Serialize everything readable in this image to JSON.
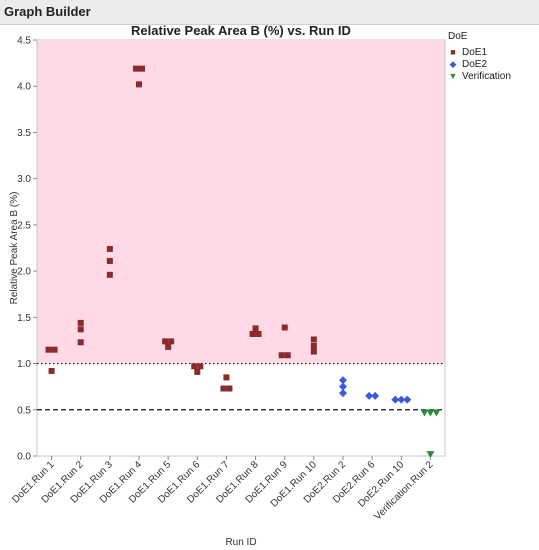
{
  "window": {
    "title": "Graph Builder"
  },
  "chart_data": {
    "type": "scatter",
    "title": "Relative Peak Area B (%)  vs. Run ID",
    "xlabel": "Run ID",
    "ylabel": "Relative Peak Area B (%)",
    "ylim": [
      0,
      4.5
    ],
    "yticks": [
      "0.0",
      "0.5",
      "1.0",
      "1.5",
      "2.0",
      "2.5",
      "3.0",
      "3.5",
      "4.0",
      "4.5"
    ],
    "categories": [
      "DoE1.Run 1",
      "DoE1.Run 2",
      "DoE1.Run 3",
      "DoE1.Run 4",
      "DoE1.Run 5",
      "DoE1.Run 6",
      "DoE1.Run 7",
      "DoE1.Run 8",
      "DoE1.Run 9",
      "DoE1.Run 10",
      "DoE2.Run 2",
      "DoE2.Run 6",
      "DoE2.Run 10",
      "Verification.Run 2"
    ],
    "reference_lines": [
      {
        "y": 1.0,
        "style": "dotted"
      },
      {
        "y": 0.5,
        "style": "dashed"
      }
    ],
    "shaded_region": {
      "from": 1.0,
      "to": 4.5,
      "color": "#ffd9e6"
    },
    "legend": {
      "title": "DoE",
      "position": "right"
    },
    "series": [
      {
        "name": "DoE1",
        "marker": "square",
        "color": "#8b2a2a",
        "points": [
          {
            "x": "DoE1.Run 1",
            "y": 1.15
          },
          {
            "x": "DoE1.Run 1",
            "y": 1.15
          },
          {
            "x": "DoE1.Run 1",
            "y": 0.92
          },
          {
            "x": "DoE1.Run 2",
            "y": 1.44
          },
          {
            "x": "DoE1.Run 2",
            "y": 1.37
          },
          {
            "x": "DoE1.Run 2",
            "y": 1.23
          },
          {
            "x": "DoE1.Run 3",
            "y": 2.24
          },
          {
            "x": "DoE1.Run 3",
            "y": 2.11
          },
          {
            "x": "DoE1.Run 3",
            "y": 1.96
          },
          {
            "x": "DoE1.Run 4",
            "y": 4.19
          },
          {
            "x": "DoE1.Run 4",
            "y": 4.19
          },
          {
            "x": "DoE1.Run 4",
            "y": 4.02
          },
          {
            "x": "DoE1.Run 5",
            "y": 1.24
          },
          {
            "x": "DoE1.Run 5",
            "y": 1.24
          },
          {
            "x": "DoE1.Run 5",
            "y": 1.18
          },
          {
            "x": "DoE1.Run 6",
            "y": 0.97
          },
          {
            "x": "DoE1.Run 6",
            "y": 0.97
          },
          {
            "x": "DoE1.Run 6",
            "y": 0.91
          },
          {
            "x": "DoE1.Run 7",
            "y": 0.85
          },
          {
            "x": "DoE1.Run 7",
            "y": 0.73
          },
          {
            "x": "DoE1.Run 7",
            "y": 0.73
          },
          {
            "x": "DoE1.Run 8",
            "y": 1.38
          },
          {
            "x": "DoE1.Run 8",
            "y": 1.32
          },
          {
            "x": "DoE1.Run 8",
            "y": 1.32
          },
          {
            "x": "DoE1.Run 9",
            "y": 1.39
          },
          {
            "x": "DoE1.Run 9",
            "y": 1.09
          },
          {
            "x": "DoE1.Run 9",
            "y": 1.09
          },
          {
            "x": "DoE1.Run 10",
            "y": 1.26
          },
          {
            "x": "DoE1.Run 10",
            "y": 1.19
          },
          {
            "x": "DoE1.Run 10",
            "y": 1.13
          }
        ]
      },
      {
        "name": "DoE2",
        "marker": "diamond",
        "color": "#3b5bdb",
        "points": [
          {
            "x": "DoE2.Run 2",
            "y": 0.82
          },
          {
            "x": "DoE2.Run 2",
            "y": 0.75
          },
          {
            "x": "DoE2.Run 2",
            "y": 0.68
          },
          {
            "x": "DoE2.Run 6",
            "y": 0.65
          },
          {
            "x": "DoE2.Run 6",
            "y": 0.65
          },
          {
            "x": "DoE2.Run 10",
            "y": 0.61
          },
          {
            "x": "DoE2.Run 10",
            "y": 0.61
          },
          {
            "x": "DoE2.Run 10",
            "y": 0.61
          }
        ]
      },
      {
        "name": "Verification",
        "marker": "triangle-down",
        "color": "#2e8b3c",
        "points": [
          {
            "x": "Verification.Run 2",
            "y": 0.47
          },
          {
            "x": "Verification.Run 2",
            "y": 0.47
          },
          {
            "x": "Verification.Run 2",
            "y": 0.47
          },
          {
            "x": "Verification.Run 2",
            "y": 0.02
          }
        ]
      }
    ]
  }
}
